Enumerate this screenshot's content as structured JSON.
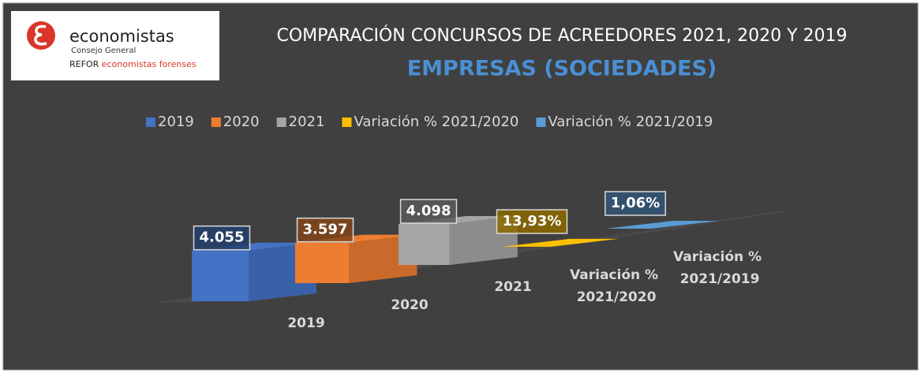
{
  "logo": {
    "name": "economistas",
    "subtitle": "Consejo General",
    "refor": "REFOR",
    "refor_tagline": "economistas forenses"
  },
  "chart_data": {
    "type": "bar3d",
    "title": "COMPARACIÓN CONCURSOS DE ACREEDORES 2021, 2020 Y 2019",
    "subtitle": "EMPRESAS (SOCIEDADES)",
    "categories": [
      "2019",
      "2020",
      "2021",
      "Variación % 2021/2020",
      "Variación % 2021/2019"
    ],
    "series": [
      {
        "name": "2019",
        "color": "#4472c4",
        "values": [
          4055,
          null,
          null,
          null,
          null
        ],
        "value_labels": [
          "4.055",
          null,
          null,
          null,
          null
        ]
      },
      {
        "name": "2020",
        "color": "#ed7d31",
        "values": [
          null,
          3597,
          null,
          null,
          null
        ],
        "value_labels": [
          null,
          "3.597",
          null,
          null,
          null
        ]
      },
      {
        "name": "2021",
        "color": "#a5a5a5",
        "values": [
          null,
          null,
          4098,
          null,
          null
        ],
        "value_labels": [
          null,
          null,
          "4.098",
          null,
          null
        ]
      },
      {
        "name": "Variación % 2021/2020",
        "color": "#ffc000",
        "values": [
          null,
          null,
          null,
          13.93,
          null
        ],
        "value_labels": [
          null,
          null,
          null,
          "13,93%",
          null
        ]
      },
      {
        "name": "Variación % 2021/2019",
        "color": "#5b9bd5",
        "values": [
          null,
          null,
          null,
          null,
          1.06
        ],
        "value_labels": [
          null,
          null,
          null,
          null,
          "1,06%"
        ]
      }
    ],
    "legend": "top"
  }
}
